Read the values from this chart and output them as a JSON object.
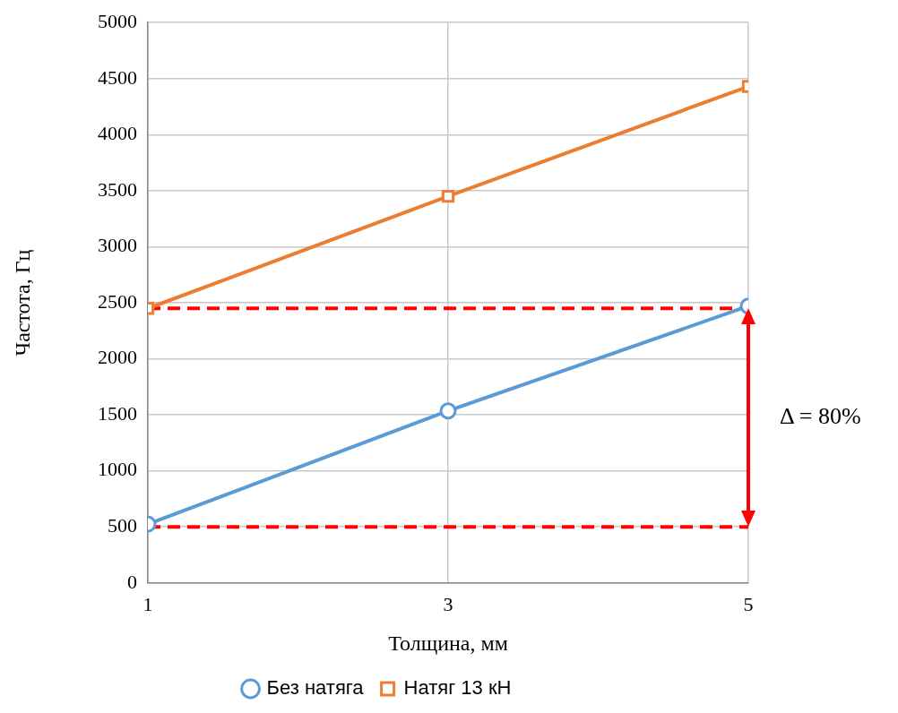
{
  "chart_data": {
    "type": "line",
    "xlabel": "Толщина, мм",
    "ylabel": "Частота, Гц",
    "x": [
      1,
      3,
      5
    ],
    "xlim": [
      1,
      5
    ],
    "xticks": [
      1,
      3,
      5
    ],
    "ylim": [
      0,
      5000
    ],
    "yticks": [
      0,
      500,
      1000,
      1500,
      2000,
      2500,
      3000,
      3500,
      4000,
      4500,
      5000
    ],
    "series": [
      {
        "name": "Без натяга",
        "color": "#5b9bd5",
        "values": [
          525,
          1535,
          2470
        ],
        "marker": "circle"
      },
      {
        "name": "Натяг 13 кН",
        "color": "#ed7d31",
        "values": [
          2450,
          3450,
          4430
        ],
        "marker": "square"
      }
    ],
    "ref_lines": [
      {
        "axis": "y",
        "value": 2450,
        "color": "#ff0000",
        "line_style": "dashed"
      },
      {
        "axis": "y",
        "value": 500,
        "color": "#ff0000",
        "line_style": "dashed"
      }
    ],
    "annotations": [
      "Δ = 80%"
    ],
    "grid": true,
    "legend": "bottom",
    "line_style": "solid"
  }
}
